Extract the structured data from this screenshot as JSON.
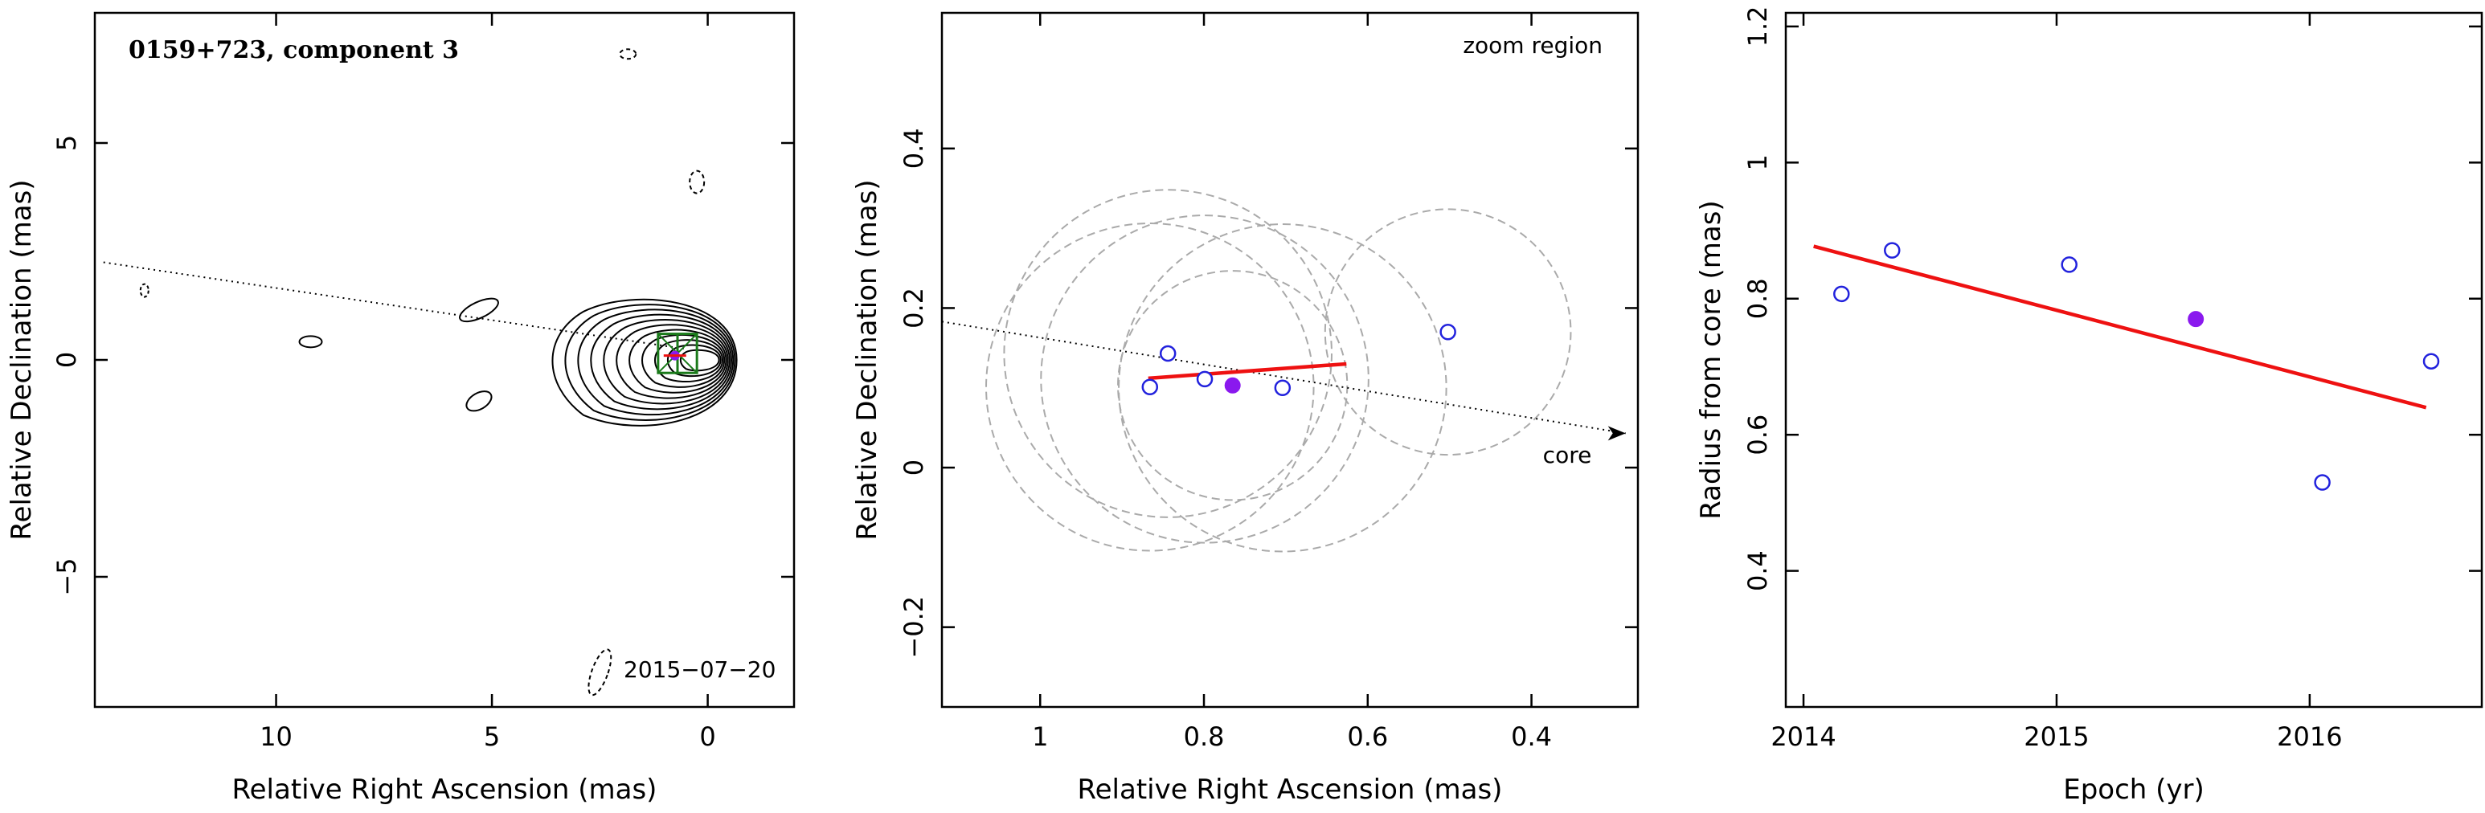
{
  "chart_data": [
    {
      "type": "contour",
      "title": "0159+723, component 3",
      "annotation": "2015−07−20",
      "xlabel": "Relative Right Ascension (mas)",
      "ylabel": "Relative Declination (mas)",
      "xlim": [
        14.2,
        -2
      ],
      "ylim": [
        -8,
        8
      ],
      "xticks": [
        10,
        5,
        0
      ],
      "yticks": [
        -5,
        0,
        5
      ],
      "xtick_labels": [
        "10",
        "5",
        "0"
      ],
      "ytick_labels": [
        "−5",
        "0",
        "5"
      ],
      "jet_axis": {
        "x": [
          14,
          0.5
        ],
        "y": [
          2.25,
          0.25
        ]
      },
      "component_box": {
        "x0": 1.15,
        "x1": 0.25,
        "y0": -0.3,
        "y1": 0.6
      },
      "core_ellipse": {
        "x": 0,
        "y": 0,
        "rx": 1.1,
        "ry": 0.75
      },
      "component_marker": {
        "x": 0.76,
        "y": 0.1
      },
      "contour_count": 11
    },
    {
      "type": "scatter",
      "title": "",
      "annotation": "zoom region",
      "axis_note": "core",
      "xlabel": "Relative Right Ascension (mas)",
      "ylabel": "Relative Declination (mas)",
      "xlim": [
        1.12,
        0.27
      ],
      "ylim": [
        -0.3,
        0.57
      ],
      "xticks": [
        1,
        0.8,
        0.6,
        0.4
      ],
      "yticks": [
        -0.2,
        0,
        0.2,
        0.4
      ],
      "xtick_labels": [
        "1",
        "0.8",
        "0.6",
        "0.4"
      ],
      "ytick_labels": [
        "−0.2",
        "0",
        "0.2",
        "0.4"
      ],
      "points_open": [
        {
          "x": 0.866,
          "y": 0.101
        },
        {
          "x": 0.844,
          "y": 0.143
        },
        {
          "x": 0.799,
          "y": 0.111
        },
        {
          "x": 0.704,
          "y": 0.1
        },
        {
          "x": 0.502,
          "y": 0.17
        }
      ],
      "point_filled": {
        "x": 0.765,
        "y": 0.103
      },
      "error_circles": [
        {
          "x": 0.866,
          "y": 0.101,
          "r": 0.2
        },
        {
          "x": 0.844,
          "y": 0.143,
          "r": 0.2
        },
        {
          "x": 0.799,
          "y": 0.111,
          "r": 0.2
        },
        {
          "x": 0.704,
          "y": 0.1,
          "r": 0.2
        },
        {
          "x": 0.765,
          "y": 0.103,
          "r": 0.14
        },
        {
          "x": 0.502,
          "y": 0.17,
          "r": 0.15
        }
      ],
      "fit_line": {
        "x": [
          0.868,
          0.626
        ],
        "y": [
          0.112,
          0.13
        ]
      },
      "axis_line": {
        "x": [
          1.12,
          0.285
        ],
        "y": [
          0.183,
          0.043
        ]
      },
      "colors": {
        "open": "#2222dd",
        "filled": "#8a19ee",
        "fit": "#ee1111",
        "circle": "#aaaaaa"
      }
    },
    {
      "type": "scatter",
      "title": "",
      "xlabel": "Epoch (yr)",
      "ylabel": "Radius from core (mas)",
      "xlim": [
        2013.93,
        2016.68
      ],
      "ylim": [
        0.2,
        1.22
      ],
      "xticks": [
        2014,
        2015,
        2016
      ],
      "yticks": [
        0.4,
        0.6,
        0.8,
        1,
        1.2
      ],
      "xtick_labels": [
        "2014",
        "2015",
        "2016"
      ],
      "ytick_labels": [
        "0.4",
        "0.6",
        "0.8",
        "1",
        "1.2"
      ],
      "points_open": [
        {
          "x": 2014.15,
          "y": 0.807
        },
        {
          "x": 2014.35,
          "y": 0.871
        },
        {
          "x": 2015.05,
          "y": 0.85
        },
        {
          "x": 2016.05,
          "y": 0.53
        },
        {
          "x": 2016.48,
          "y": 0.708
        }
      ],
      "point_filled": {
        "x": 2015.55,
        "y": 0.77
      },
      "fit_line": {
        "x": [
          2014.04,
          2016.46
        ],
        "y": [
          0.877,
          0.64
        ]
      },
      "colors": {
        "open": "#2222dd",
        "filled": "#8a19ee",
        "fit": "#ee1111"
      }
    }
  ]
}
